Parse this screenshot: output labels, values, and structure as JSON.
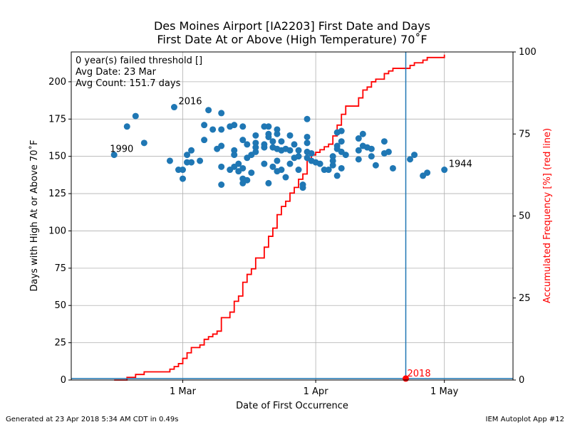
{
  "chart_data": {
    "type": "scatter",
    "title_line1": "Des Moines Airport [IA2203] First Date and Days",
    "title_line2": "First Date At or Above (High Temperature) 70˚F",
    "xlabel": "Date of First Occurrence",
    "ylabel": "Days with High At or Above 70˚F",
    "y2label": "Accumulated Frequency [%] (red line)",
    "xlim": [
      "2018-02-03",
      "2018-05-17"
    ],
    "ylim": [
      0,
      220
    ],
    "y2lim": [
      0,
      100
    ],
    "grid": true,
    "x_ticks": [
      {
        "date": "2018-03-01",
        "label": "1 Mar"
      },
      {
        "date": "2018-04-01",
        "label": "1 Apr"
      },
      {
        "date": "2018-05-01",
        "label": "1 May"
      }
    ],
    "y_ticks": [
      0,
      25,
      50,
      75,
      100,
      125,
      150,
      175,
      200
    ],
    "y2_ticks": [
      0,
      25,
      50,
      75,
      100
    ],
    "stats_box": [
      "0 year(s) failed threshold []",
      "Avg Date: 23 Mar",
      "Avg Count: 151.7 days"
    ],
    "annotations": [
      {
        "label": "1990",
        "date": "2018-02-13",
        "value": 151
      },
      {
        "label": "2016",
        "date": "2018-02-27",
        "value": 183
      },
      {
        "label": "1944",
        "date": "2018-05-01",
        "value": 141
      },
      {
        "label": "2018",
        "date": "2018-04-22",
        "value": 1
      }
    ],
    "current_year": {
      "label": "2018",
      "date": "2018-04-22",
      "value": 1
    },
    "reference_line": {
      "date": "2018-04-22",
      "y": 1
    },
    "colors": {
      "points": "#1f77b4",
      "cdf_line": "#ff0000",
      "reference": "#1f77b4",
      "highlight": "#ff0000",
      "grid": "#b0b0b0"
    },
    "points": [
      {
        "date": "2018-02-13",
        "value": 151
      },
      {
        "date": "2018-02-16",
        "value": 170
      },
      {
        "date": "2018-02-18",
        "value": 177
      },
      {
        "date": "2018-02-20",
        "value": 159
      },
      {
        "date": "2018-02-26",
        "value": 147
      },
      {
        "date": "2018-02-27",
        "value": 183
      },
      {
        "date": "2018-02-28",
        "value": 141
      },
      {
        "date": "2018-03-01",
        "value": 135
      },
      {
        "date": "2018-03-01",
        "value": 141
      },
      {
        "date": "2018-03-02",
        "value": 151
      },
      {
        "date": "2018-03-02",
        "value": 146
      },
      {
        "date": "2018-03-03",
        "value": 154
      },
      {
        "date": "2018-03-03",
        "value": 146
      },
      {
        "date": "2018-03-05",
        "value": 147
      },
      {
        "date": "2018-03-06",
        "value": 171
      },
      {
        "date": "2018-03-06",
        "value": 161
      },
      {
        "date": "2018-03-07",
        "value": 181
      },
      {
        "date": "2018-03-08",
        "value": 168
      },
      {
        "date": "2018-03-09",
        "value": 155
      },
      {
        "date": "2018-03-10",
        "value": 179
      },
      {
        "date": "2018-03-10",
        "value": 168
      },
      {
        "date": "2018-03-10",
        "value": 157
      },
      {
        "date": "2018-03-10",
        "value": 143
      },
      {
        "date": "2018-03-10",
        "value": 131
      },
      {
        "date": "2018-03-12",
        "value": 170
      },
      {
        "date": "2018-03-12",
        "value": 141
      },
      {
        "date": "2018-03-13",
        "value": 171
      },
      {
        "date": "2018-03-13",
        "value": 154
      },
      {
        "date": "2018-03-13",
        "value": 151
      },
      {
        "date": "2018-03-13",
        "value": 143
      },
      {
        "date": "2018-03-14",
        "value": 145
      },
      {
        "date": "2018-03-14",
        "value": 140
      },
      {
        "date": "2018-03-15",
        "value": 170
      },
      {
        "date": "2018-03-15",
        "value": 161
      },
      {
        "date": "2018-03-15",
        "value": 142
      },
      {
        "date": "2018-03-15",
        "value": 135
      },
      {
        "date": "2018-03-15",
        "value": 132
      },
      {
        "date": "2018-03-16",
        "value": 158
      },
      {
        "date": "2018-03-16",
        "value": 149
      },
      {
        "date": "2018-03-16",
        "value": 134
      },
      {
        "date": "2018-03-17",
        "value": 151
      },
      {
        "date": "2018-03-17",
        "value": 139
      },
      {
        "date": "2018-03-18",
        "value": 164
      },
      {
        "date": "2018-03-18",
        "value": 159
      },
      {
        "date": "2018-03-18",
        "value": 156
      },
      {
        "date": "2018-03-18",
        "value": 153
      },
      {
        "date": "2018-03-20",
        "value": 170
      },
      {
        "date": "2018-03-20",
        "value": 158
      },
      {
        "date": "2018-03-20",
        "value": 156
      },
      {
        "date": "2018-03-20",
        "value": 145
      },
      {
        "date": "2018-03-21",
        "value": 170
      },
      {
        "date": "2018-03-21",
        "value": 165
      },
      {
        "date": "2018-03-21",
        "value": 163
      },
      {
        "date": "2018-03-21",
        "value": 132
      },
      {
        "date": "2018-03-22",
        "value": 160
      },
      {
        "date": "2018-03-22",
        "value": 156
      },
      {
        "date": "2018-03-22",
        "value": 143
      },
      {
        "date": "2018-03-23",
        "value": 168
      },
      {
        "date": "2018-03-23",
        "value": 165
      },
      {
        "date": "2018-03-23",
        "value": 155
      },
      {
        "date": "2018-03-23",
        "value": 147
      },
      {
        "date": "2018-03-23",
        "value": 140
      },
      {
        "date": "2018-03-24",
        "value": 160
      },
      {
        "date": "2018-03-24",
        "value": 154
      },
      {
        "date": "2018-03-24",
        "value": 141
      },
      {
        "date": "2018-03-25",
        "value": 155
      },
      {
        "date": "2018-03-25",
        "value": 136
      },
      {
        "date": "2018-03-26",
        "value": 164
      },
      {
        "date": "2018-03-26",
        "value": 154
      },
      {
        "date": "2018-03-26",
        "value": 145
      },
      {
        "date": "2018-03-27",
        "value": 158
      },
      {
        "date": "2018-03-27",
        "value": 149
      },
      {
        "date": "2018-03-28",
        "value": 154
      },
      {
        "date": "2018-03-28",
        "value": 150
      },
      {
        "date": "2018-03-28",
        "value": 141
      },
      {
        "date": "2018-03-29",
        "value": 131
      },
      {
        "date": "2018-03-29",
        "value": 129
      },
      {
        "date": "2018-03-30",
        "value": 175
      },
      {
        "date": "2018-03-30",
        "value": 163
      },
      {
        "date": "2018-03-30",
        "value": 159
      },
      {
        "date": "2018-03-30",
        "value": 153
      },
      {
        "date": "2018-03-30",
        "value": 149
      },
      {
        "date": "2018-03-31",
        "value": 152
      },
      {
        "date": "2018-03-31",
        "value": 147
      },
      {
        "date": "2018-04-01",
        "value": 146
      },
      {
        "date": "2018-04-02",
        "value": 145
      },
      {
        "date": "2018-04-03",
        "value": 141
      },
      {
        "date": "2018-04-04",
        "value": 141
      },
      {
        "date": "2018-04-05",
        "value": 150
      },
      {
        "date": "2018-04-05",
        "value": 147
      },
      {
        "date": "2018-04-05",
        "value": 144
      },
      {
        "date": "2018-04-06",
        "value": 166
      },
      {
        "date": "2018-04-06",
        "value": 157
      },
      {
        "date": "2018-04-06",
        "value": 155
      },
      {
        "date": "2018-04-06",
        "value": 137
      },
      {
        "date": "2018-04-07",
        "value": 167
      },
      {
        "date": "2018-04-07",
        "value": 160
      },
      {
        "date": "2018-04-07",
        "value": 153
      },
      {
        "date": "2018-04-07",
        "value": 142
      },
      {
        "date": "2018-04-08",
        "value": 151
      },
      {
        "date": "2018-04-11",
        "value": 162
      },
      {
        "date": "2018-04-11",
        "value": 154
      },
      {
        "date": "2018-04-11",
        "value": 148
      },
      {
        "date": "2018-04-12",
        "value": 165
      },
      {
        "date": "2018-04-12",
        "value": 157
      },
      {
        "date": "2018-04-13",
        "value": 156
      },
      {
        "date": "2018-04-14",
        "value": 155
      },
      {
        "date": "2018-04-14",
        "value": 150
      },
      {
        "date": "2018-04-15",
        "value": 144
      },
      {
        "date": "2018-04-17",
        "value": 160
      },
      {
        "date": "2018-04-17",
        "value": 152
      },
      {
        "date": "2018-04-18",
        "value": 153
      },
      {
        "date": "2018-04-19",
        "value": 142
      },
      {
        "date": "2018-04-23",
        "value": 148
      },
      {
        "date": "2018-04-24",
        "value": 151
      },
      {
        "date": "2018-04-26",
        "value": 137
      },
      {
        "date": "2018-04-27",
        "value": 139
      },
      {
        "date": "2018-05-01",
        "value": 141
      }
    ],
    "cdf_line": [
      {
        "date": "2018-02-13",
        "pct": 0
      },
      {
        "date": "2018-02-16",
        "pct": 0.8
      },
      {
        "date": "2018-02-18",
        "pct": 1.7
      },
      {
        "date": "2018-02-20",
        "pct": 2.5
      },
      {
        "date": "2018-02-26",
        "pct": 3.3
      },
      {
        "date": "2018-02-27",
        "pct": 4.1
      },
      {
        "date": "2018-02-28",
        "pct": 5.0
      },
      {
        "date": "2018-03-01",
        "pct": 6.6
      },
      {
        "date": "2018-03-02",
        "pct": 8.3
      },
      {
        "date": "2018-03-03",
        "pct": 9.9
      },
      {
        "date": "2018-03-05",
        "pct": 10.7
      },
      {
        "date": "2018-03-06",
        "pct": 12.4
      },
      {
        "date": "2018-03-07",
        "pct": 13.2
      },
      {
        "date": "2018-03-08",
        "pct": 14.0
      },
      {
        "date": "2018-03-09",
        "pct": 14.9
      },
      {
        "date": "2018-03-10",
        "pct": 19.0
      },
      {
        "date": "2018-03-12",
        "pct": 20.7
      },
      {
        "date": "2018-03-13",
        "pct": 24.0
      },
      {
        "date": "2018-03-14",
        "pct": 25.6
      },
      {
        "date": "2018-03-15",
        "pct": 29.8
      },
      {
        "date": "2018-03-16",
        "pct": 32.2
      },
      {
        "date": "2018-03-17",
        "pct": 33.9
      },
      {
        "date": "2018-03-18",
        "pct": 37.2
      },
      {
        "date": "2018-03-20",
        "pct": 40.5
      },
      {
        "date": "2018-03-21",
        "pct": 43.8
      },
      {
        "date": "2018-03-22",
        "pct": 46.3
      },
      {
        "date": "2018-03-23",
        "pct": 50.4
      },
      {
        "date": "2018-03-24",
        "pct": 52.9
      },
      {
        "date": "2018-03-25",
        "pct": 54.5
      },
      {
        "date": "2018-03-26",
        "pct": 57.0
      },
      {
        "date": "2018-03-27",
        "pct": 58.7
      },
      {
        "date": "2018-03-28",
        "pct": 61.2
      },
      {
        "date": "2018-03-29",
        "pct": 62.8
      },
      {
        "date": "2018-03-30",
        "pct": 66.9
      },
      {
        "date": "2018-03-31",
        "pct": 68.6
      },
      {
        "date": "2018-04-01",
        "pct": 69.4
      },
      {
        "date": "2018-04-02",
        "pct": 70.2
      },
      {
        "date": "2018-04-03",
        "pct": 71.1
      },
      {
        "date": "2018-04-04",
        "pct": 71.9
      },
      {
        "date": "2018-04-05",
        "pct": 74.4
      },
      {
        "date": "2018-04-06",
        "pct": 77.7
      },
      {
        "date": "2018-04-07",
        "pct": 81.0
      },
      {
        "date": "2018-04-08",
        "pct": 83.5
      },
      {
        "date": "2018-04-11",
        "pct": 86.0
      },
      {
        "date": "2018-04-12",
        "pct": 88.4
      },
      {
        "date": "2018-04-13",
        "pct": 89.3
      },
      {
        "date": "2018-04-14",
        "pct": 90.9
      },
      {
        "date": "2018-04-15",
        "pct": 91.7
      },
      {
        "date": "2018-04-17",
        "pct": 93.4
      },
      {
        "date": "2018-04-18",
        "pct": 94.2
      },
      {
        "date": "2018-04-19",
        "pct": 95.0
      },
      {
        "date": "2018-04-23",
        "pct": 95.9
      },
      {
        "date": "2018-04-24",
        "pct": 96.7
      },
      {
        "date": "2018-04-26",
        "pct": 97.5
      },
      {
        "date": "2018-04-27",
        "pct": 98.3
      },
      {
        "date": "2018-05-01",
        "pct": 99.2
      }
    ]
  },
  "footer": {
    "left": "Generated at 23 Apr 2018 5:34 AM CDT in 0.49s",
    "right": "IEM Autoplot App #12"
  }
}
